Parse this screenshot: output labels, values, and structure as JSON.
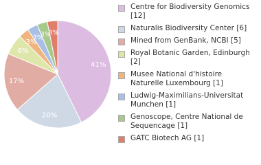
{
  "chart_data": {
    "type": "pie",
    "categories": [
      "Centre for Biodiversity Genomics [12]",
      "Naturalis Biodiversity Center [6]",
      "Mined from GenBank, NCBI [5]",
      "Royal Botanic Garden, Edinburgh [2]",
      "Musee National d'histoire Naturelle Luxembourg [1]",
      "Ludwig-Maximilians-Universitat Munchen [1]",
      "Genoscope, Centre National de Sequencage [1]",
      "GATC Biotech AG [1]"
    ],
    "values": [
      41,
      20,
      17,
      6,
      3,
      3,
      3,
      3
    ],
    "value_labels": [
      "41%",
      "20%",
      "17%",
      "6%",
      "3%",
      "3%",
      "3%",
      "3%"
    ],
    "colors": [
      "#dcbde1",
      "#cfd9e6",
      "#e0aca3",
      "#dfe6a9",
      "#f0b47d",
      "#a9bfe6",
      "#a8c98c",
      "#e07e6a"
    ]
  }
}
